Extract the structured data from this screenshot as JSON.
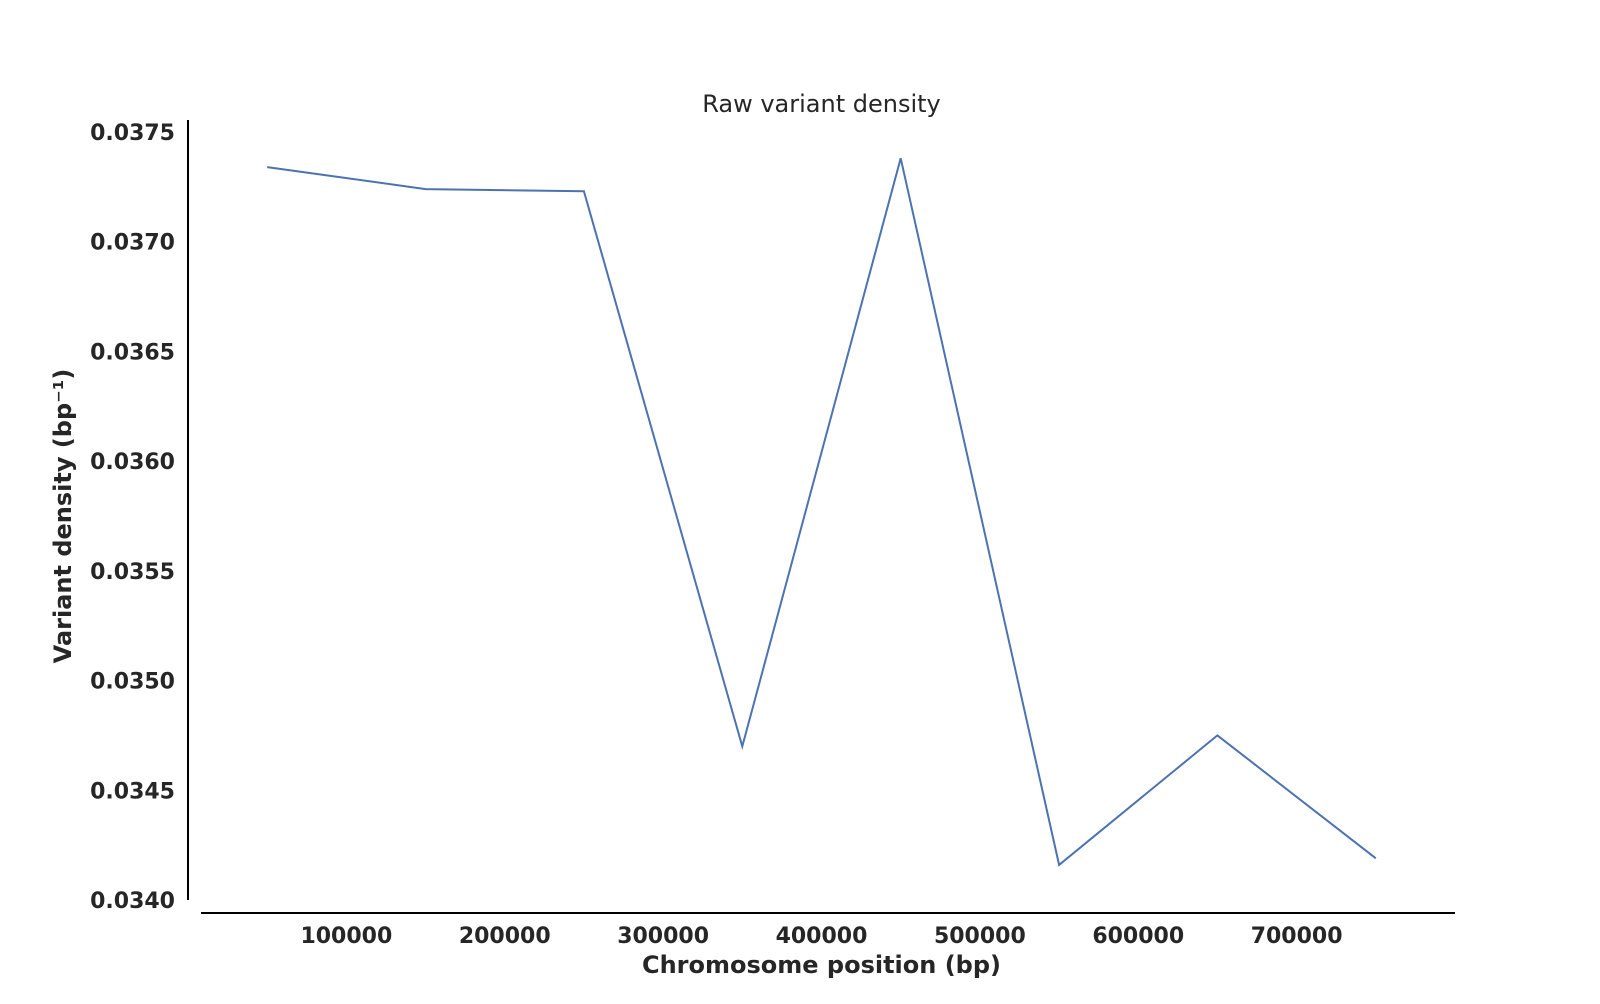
{
  "chart_data": {
    "type": "line",
    "title": "Raw variant density",
    "xlabel": "Chromosome position (bp)",
    "ylabel": "Variant density (bp⁻¹)",
    "xlim": [
      0,
      800000
    ],
    "ylim": [
      0.034,
      0.0375
    ],
    "xticks": [
      100000,
      200000,
      300000,
      400000,
      500000,
      600000,
      700000
    ],
    "xtick_labels": [
      "100000",
      "200000",
      "300000",
      "400000",
      "500000",
      "600000",
      "700000"
    ],
    "yticks": [
      0.034,
      0.0345,
      0.035,
      0.0355,
      0.036,
      0.0365,
      0.037,
      0.0375
    ],
    "ytick_labels": [
      "0.0340",
      "0.0345",
      "0.0350",
      "0.0355",
      "0.0360",
      "0.0365",
      "0.0370",
      "0.0375"
    ],
    "grid": false,
    "legend": false,
    "series": [
      {
        "color": "#4c72b0",
        "x": [
          50000,
          150000,
          250000,
          350000,
          450000,
          550000,
          650000,
          750000
        ],
        "y": [
          0.03734,
          0.03724,
          0.03723,
          0.0347,
          0.03738,
          0.03416,
          0.03475,
          0.03419
        ]
      }
    ]
  }
}
